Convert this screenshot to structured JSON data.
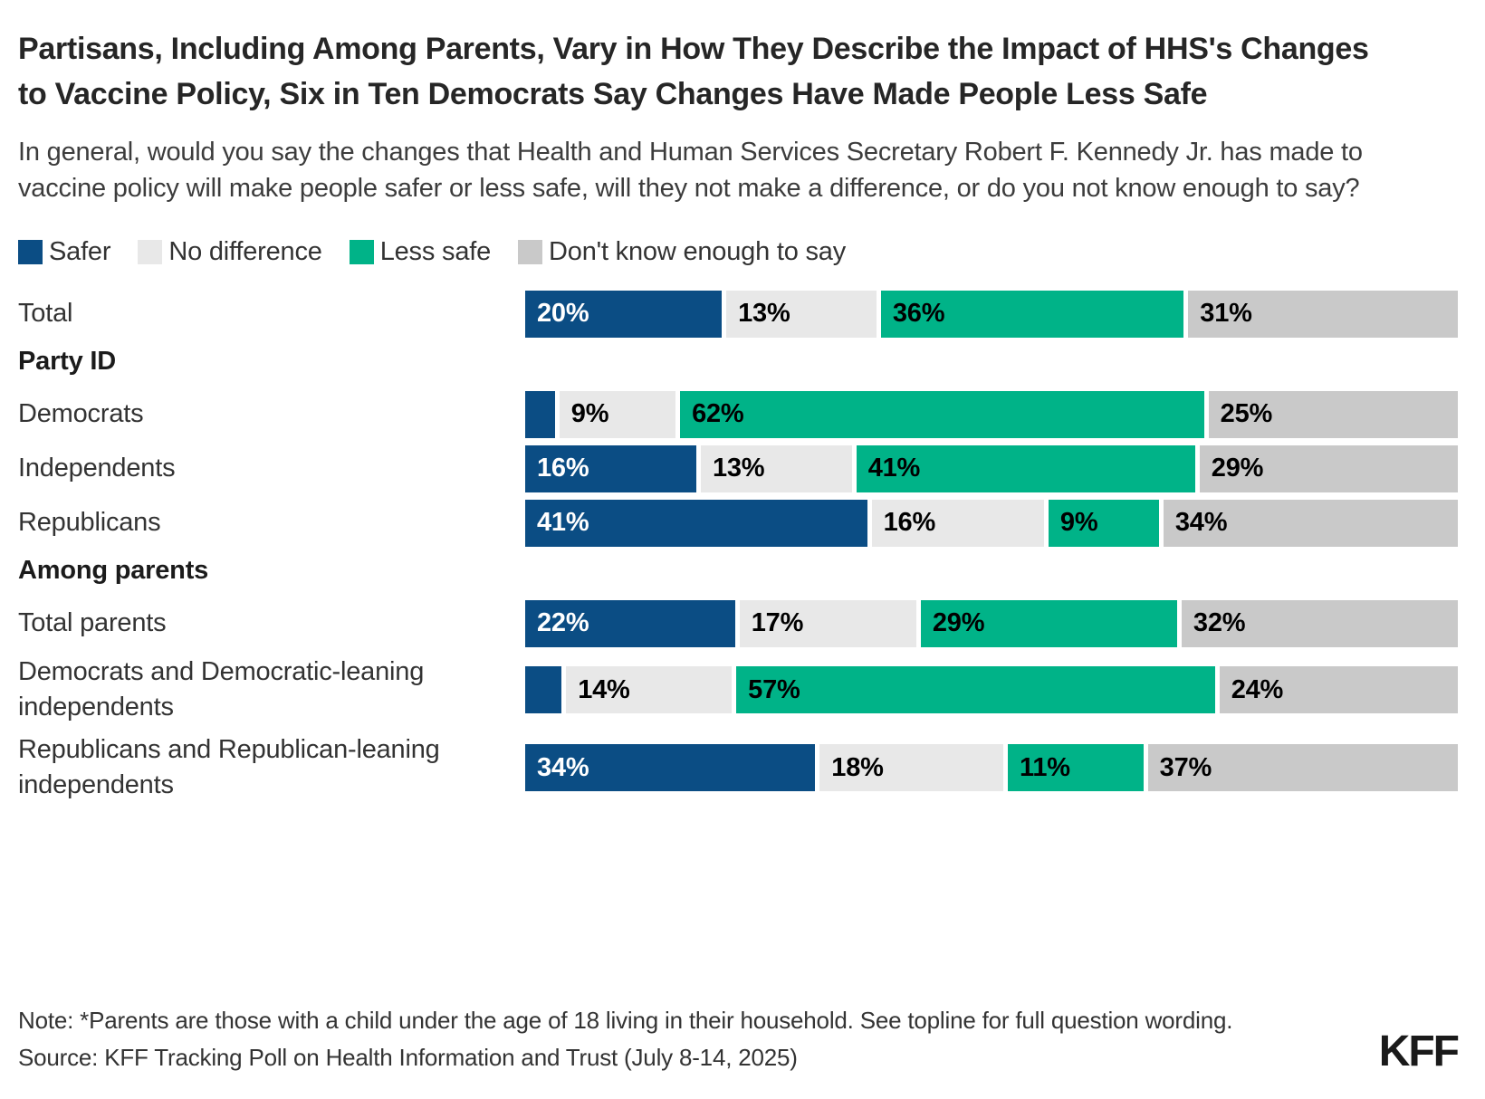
{
  "page": {
    "title": "Partisans, Including Among Parents, Vary in How They Describe the Impact of HHS's Changes to Vaccine Policy, Six in Ten Democrats Say Changes Have Made People Less Safe",
    "subtitle": "In general, would you say the changes that Health and Human Services Secretary Robert F. Kennedy Jr. has made to vaccine policy will make people safer or less safe, will they not make a difference, or do you not know enough to say?"
  },
  "legend": [
    {
      "label": "Safer",
      "color": "#0b4d84"
    },
    {
      "label": "No difference",
      "color": "#e8e8e8"
    },
    {
      "label": "Less safe",
      "color": "#00b388"
    },
    {
      "label": "Don't know enough to say",
      "color": "#c9c9c9"
    }
  ],
  "chart_data": {
    "type": "bar",
    "orientation": "horizontal",
    "stacked": true,
    "unit": "%",
    "axis_range": [
      0,
      100
    ],
    "grid": false,
    "legend_position": "top",
    "series_names": [
      "Safer",
      "No difference",
      "Less safe",
      "Don't know enough to say"
    ],
    "series_colors": [
      "#0b4d84",
      "#e8e8e8",
      "#00b388",
      "#c9c9c9"
    ],
    "label_text_colors": [
      "#ffffff",
      "#000000",
      "#000000",
      "#000000"
    ],
    "min_labeled_value": 9,
    "rows": [
      {
        "kind": "data",
        "label": "Total",
        "values": [
          20,
          13,
          36,
          31
        ]
      },
      {
        "kind": "section",
        "label": "Party ID"
      },
      {
        "kind": "data",
        "label": "Democrats",
        "values": [
          4,
          9,
          62,
          25
        ]
      },
      {
        "kind": "data",
        "label": "Independents",
        "values": [
          16,
          13,
          41,
          29
        ]
      },
      {
        "kind": "data",
        "label": "Republicans",
        "values": [
          41,
          16,
          9,
          34
        ]
      },
      {
        "kind": "section",
        "label": "Among parents"
      },
      {
        "kind": "data",
        "label": "Total parents",
        "values": [
          22,
          17,
          29,
          32
        ]
      },
      {
        "kind": "data",
        "label": "Democrats and Democratic-leaning independents",
        "values": [
          5,
          14,
          57,
          24
        ]
      },
      {
        "kind": "data",
        "label": "Republicans and Republican-leaning independents",
        "values": [
          34,
          18,
          11,
          37
        ]
      }
    ]
  },
  "footer": {
    "note": "Note: *Parents are those with a child under the age of 18 living in their household. See topline for full question wording.",
    "source": "Source: KFF Tracking Poll on Health Information and Trust (July 8-14, 2025)",
    "logo": "KFF"
  }
}
